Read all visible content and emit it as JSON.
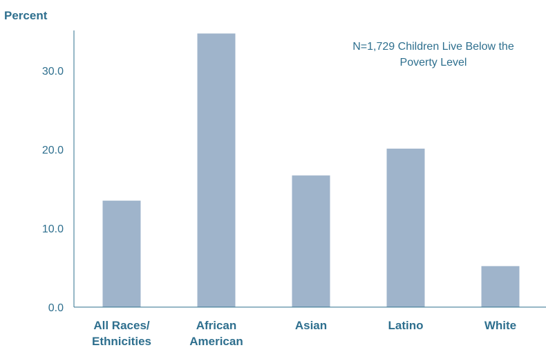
{
  "chart_data": {
    "type": "bar",
    "ylabel": "Percent",
    "categories": [
      [
        "All Races/",
        "Ethnicities"
      ],
      [
        "African",
        "American"
      ],
      [
        "Asian"
      ],
      [
        "Latino"
      ],
      [
        "White"
      ]
    ],
    "values": [
      13.5,
      34.7,
      16.7,
      20.1,
      5.2
    ],
    "yticks": [
      "0.0",
      "10.0",
      "20.0",
      "30.0"
    ],
    "ylim": [
      0,
      35
    ],
    "annotation": [
      "N=1,729 Children Live Below the",
      "Poverty Level"
    ],
    "bar_color": "#9fb4cb",
    "text_color": "#2e6f8e",
    "grid": false,
    "legend": "none"
  }
}
